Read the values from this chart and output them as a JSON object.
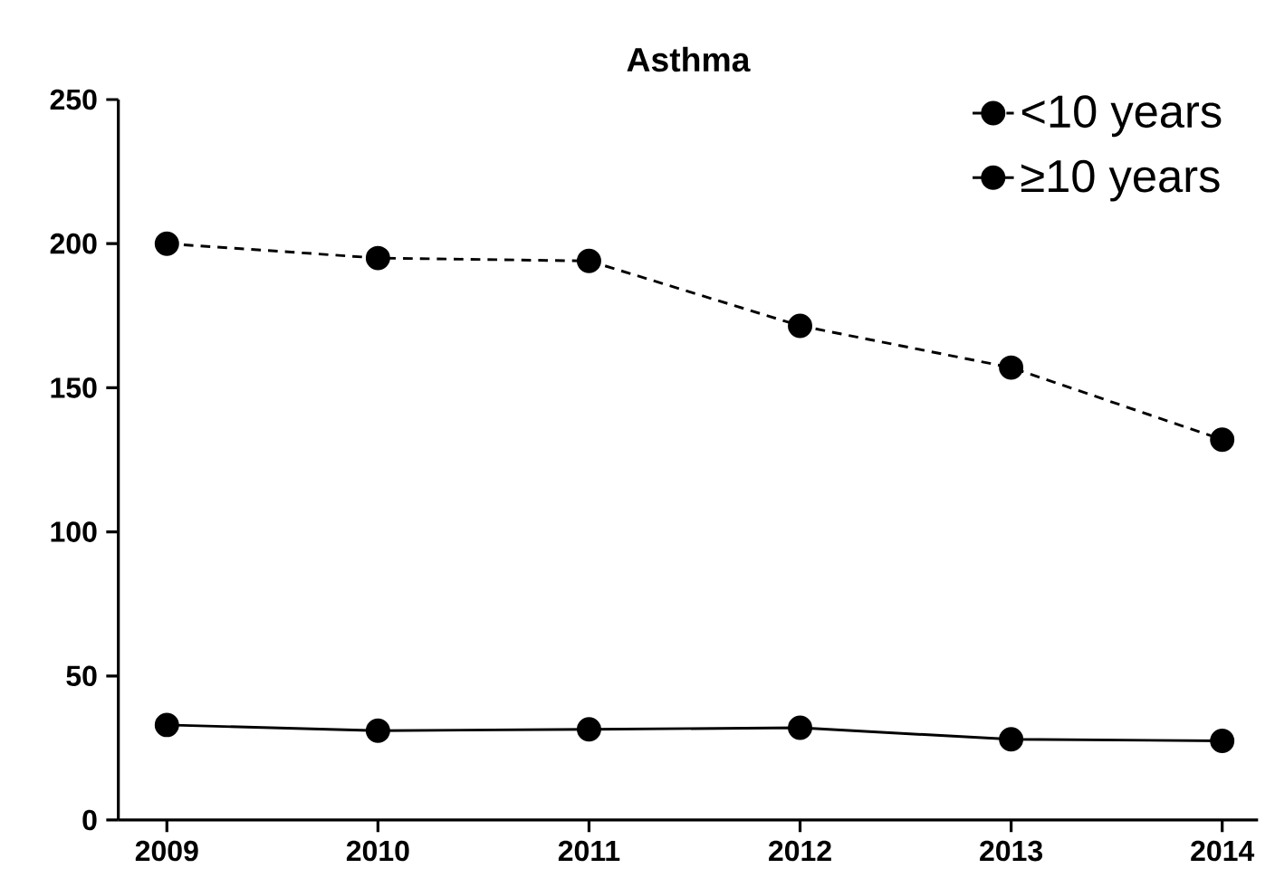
{
  "chart_data": {
    "type": "line",
    "title": "Asthma",
    "categories": [
      "2009",
      "2010",
      "2011",
      "2012",
      "2013",
      "2014"
    ],
    "series": [
      {
        "name": "<10 years",
        "color": "#000000",
        "line_style": "dashed",
        "values": [
          200,
          195,
          194,
          171.5,
          157,
          132
        ]
      },
      {
        "name": "≥10 years",
        "color": "#000000",
        "line_style": "solid",
        "values": [
          33,
          31,
          31.5,
          32,
          28,
          27.5
        ]
      }
    ],
    "ylim": [
      0,
      250
    ],
    "yticks": [
      0,
      50,
      100,
      150,
      200,
      250
    ],
    "marker": "circle",
    "legend": "top right",
    "grid": false
  }
}
